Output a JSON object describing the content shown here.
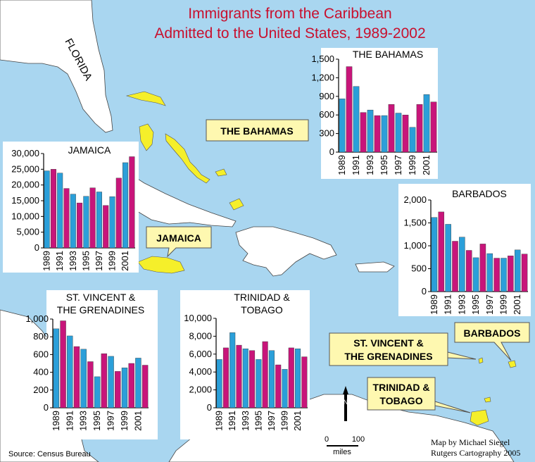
{
  "title": [
    "Immigrants from the Caribbean",
    "Admitted to the United States, 1989-2002"
  ],
  "labels": {
    "florida": "FLORIDA",
    "bahamas": "THE BAHAMAS",
    "jamaica": "JAMAICA",
    "stvincent": [
      "ST. VINCENT &",
      "THE GRENADINES"
    ],
    "barbados": "BARBADOS",
    "trinidad": [
      "TRINIDAD &",
      "TOBAGO"
    ]
  },
  "footer": {
    "source": "Source: Census Bureau",
    "credit": [
      "Map by Michael Siegel",
      "Rutgers Cartography 2005"
    ],
    "scale_zero": "0",
    "scale_max": "100",
    "scale_unit": "miles",
    "north": "N"
  },
  "colors": {
    "even_year_bar": "#2b9fd9",
    "odd_year_bar": "#c8157a",
    "water": "#a9d6f0",
    "title": "#c8102e",
    "highlight": "#f5ef2a"
  },
  "chart_data": [
    {
      "id": "bahamas",
      "type": "bar",
      "title": [
        "THE BAHAMAS"
      ],
      "x": [
        1989,
        1990,
        1991,
        1992,
        1993,
        1994,
        1995,
        1996,
        1997,
        1998,
        1999,
        2000,
        2001,
        2002
      ],
      "xtick_labels": [
        "1989",
        "1991",
        "1993",
        "1995",
        "1997",
        "1999",
        "2001"
      ],
      "values": [
        860,
        1380,
        1060,
        640,
        680,
        590,
        590,
        770,
        630,
        600,
        400,
        770,
        930,
        810
      ],
      "ylim": [
        0,
        1500
      ],
      "yticks": [
        "0",
        "300",
        "600",
        "900",
        "1,200",
        "1,500"
      ]
    },
    {
      "id": "jamaica",
      "type": "bar",
      "title": [
        "JAMAICA"
      ],
      "x": [
        1989,
        1990,
        1991,
        1992,
        1993,
        1994,
        1995,
        1996,
        1997,
        1998,
        1999,
        2000,
        2001,
        2002
      ],
      "xtick_labels": [
        "1989",
        "1991",
        "1993",
        "1995",
        "1997",
        "1999",
        "2001"
      ],
      "values": [
        24500,
        25000,
        23800,
        18900,
        17100,
        14300,
        16400,
        19100,
        17800,
        13500,
        16300,
        22200,
        27100,
        29000
      ],
      "ylim": [
        0,
        30000
      ],
      "yticks": [
        "0",
        "5,000",
        "10,000",
        "15,000",
        "20,000",
        "25,000",
        "30,000"
      ]
    },
    {
      "id": "barbados",
      "type": "bar",
      "title": [
        "BARBADOS"
      ],
      "x": [
        1989,
        1990,
        1991,
        1992,
        1993,
        1994,
        1995,
        1996,
        1997,
        1998,
        1999,
        2000,
        2001,
        2002
      ],
      "xtick_labels": [
        "1989",
        "1991",
        "1993",
        "1995",
        "1997",
        "1999",
        "2001"
      ],
      "values": [
        1620,
        1740,
        1470,
        1100,
        1190,
        900,
        740,
        1040,
        830,
        730,
        730,
        780,
        910,
        820
      ],
      "ylim": [
        0,
        2000
      ],
      "yticks": [
        "0",
        "500",
        "1,000",
        "1,500",
        "2,000"
      ]
    },
    {
      "id": "stvincent",
      "type": "bar",
      "title": [
        "ST. VINCENT &",
        "THE GRENADINES"
      ],
      "x": [
        1989,
        1990,
        1991,
        1992,
        1993,
        1994,
        1995,
        1996,
        1997,
        1998,
        1999,
        2000,
        2001,
        2002
      ],
      "xtick_labels": [
        "1989",
        "1991",
        "1993",
        "1995",
        "1997",
        "1999",
        "2001"
      ],
      "values": [
        890,
        980,
        810,
        690,
        660,
        520,
        350,
        610,
        580,
        410,
        450,
        500,
        560,
        480
      ],
      "ylim": [
        0,
        1000
      ],
      "yticks": [
        "0",
        "200",
        "400",
        "600",
        "800",
        "1,000"
      ]
    },
    {
      "id": "trinidad",
      "type": "bar",
      "title": [
        "TRINIDAD &",
        "TOBAGO"
      ],
      "x": [
        1989,
        1990,
        1991,
        1992,
        1993,
        1994,
        1995,
        1996,
        1997,
        1998,
        1999,
        2000,
        2001,
        2002
      ],
      "xtick_labels": [
        "1989",
        "1991",
        "1993",
        "1995",
        "1997",
        "1999",
        "2001"
      ],
      "values": [
        5400,
        6700,
        8400,
        7000,
        6600,
        6400,
        5400,
        7400,
        6400,
        4800,
        4300,
        6700,
        6600,
        5700
      ],
      "ylim": [
        0,
        10000
      ],
      "yticks": [
        "0",
        "2,000",
        "4,000",
        "6,000",
        "8,000",
        "10,000"
      ]
    }
  ]
}
